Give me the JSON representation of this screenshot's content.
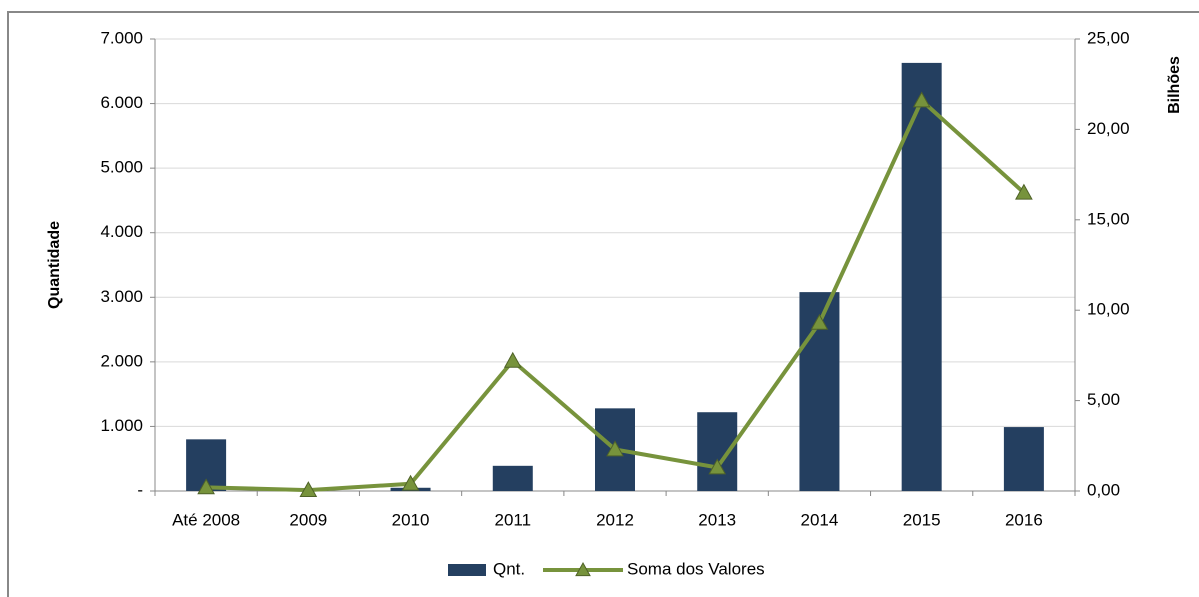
{
  "chart_data": {
    "type": "combo",
    "categories": [
      "Até 2008",
      "2009",
      "2010",
      "2011",
      "2012",
      "2013",
      "2014",
      "2015",
      "2016"
    ],
    "series": [
      {
        "name": "Qnt.",
        "type": "bar",
        "color": "#243f60",
        "values": [
          800,
          30,
          50,
          390,
          1280,
          1220,
          3080,
          6630,
          990
        ]
      },
      {
        "name": "Soma dos Valores",
        "type": "line",
        "axis": "y2",
        "color": "#77933c",
        "values": [
          0.2,
          0.05,
          0.4,
          7.2,
          2.3,
          1.3,
          9.3,
          21.6,
          16.5
        ]
      }
    ],
    "ylabel": "Quantidade",
    "y2label": "Bilhões",
    "ylim": [
      0,
      7000
    ],
    "yticks": [
      {
        "value": 0,
        "label": "-"
      },
      {
        "value": 1000,
        "label": "1.000"
      },
      {
        "value": 2000,
        "label": "2.000"
      },
      {
        "value": 3000,
        "label": "3.000"
      },
      {
        "value": 4000,
        "label": "4.000"
      },
      {
        "value": 5000,
        "label": "5.000"
      },
      {
        "value": 6000,
        "label": "6.000"
      },
      {
        "value": 7000,
        "label": "7.000"
      }
    ],
    "y2lim": [
      0,
      25
    ],
    "y2ticks": [
      {
        "value": 0,
        "label": "0,00"
      },
      {
        "value": 5,
        "label": "5,00"
      },
      {
        "value": 10,
        "label": "10,00"
      },
      {
        "value": 15,
        "label": "15,00"
      },
      {
        "value": 20,
        "label": "20,00"
      },
      {
        "value": 25,
        "label": "25,00"
      }
    ],
    "grid": true,
    "legend": "bottom"
  }
}
